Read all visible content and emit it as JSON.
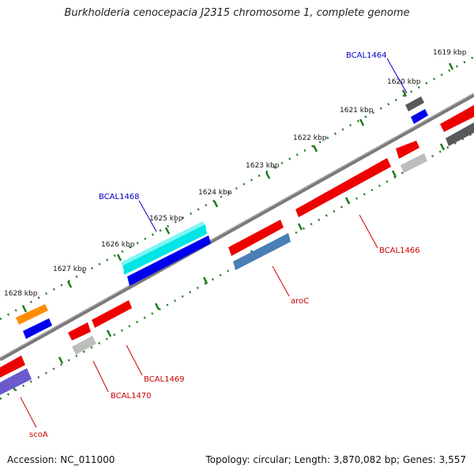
{
  "header": {
    "title": "Burkholderia cenocepacia J2315 chromosome 1, complete genome"
  },
  "footer": {
    "accession": "Accession: NC_011000",
    "summary": "Topology: circular; Length: 3,870,082 bp; Genes: 3,557"
  },
  "ticks": [
    "1619 kbp",
    "1620 kbp",
    "1621 kbp",
    "1622 kbp",
    "1623 kbp",
    "1624 kbp",
    "1625 kbp",
    "1626 kbp",
    "1627 kbp",
    "1628 kbp"
  ],
  "gene_labels": {
    "BCAL1464": "BCAL1464",
    "BCAL1468": "BCAL1468",
    "BCAL1466": "BCAL1466",
    "aroC": "aroC",
    "BCAL1469": "BCAL1469",
    "BCAL1470": "BCAL1470",
    "scoA": "scoA"
  },
  "colors": {
    "backbone": "#7a7a7a",
    "tick_dots": "#1e7a1e",
    "label_blue": "#0000cc",
    "label_red": "#cc0000",
    "feature_red": "#ee0000",
    "feature_blue": "#0000ee",
    "feature_cyan": "#00e5e5",
    "feature_steel": "#4a7fb5",
    "feature_orange": "#ff8c00",
    "feature_purple": "#6a5acd",
    "feature_darkgray": "#595959",
    "feature_lightgray": "#bdbdbd"
  }
}
